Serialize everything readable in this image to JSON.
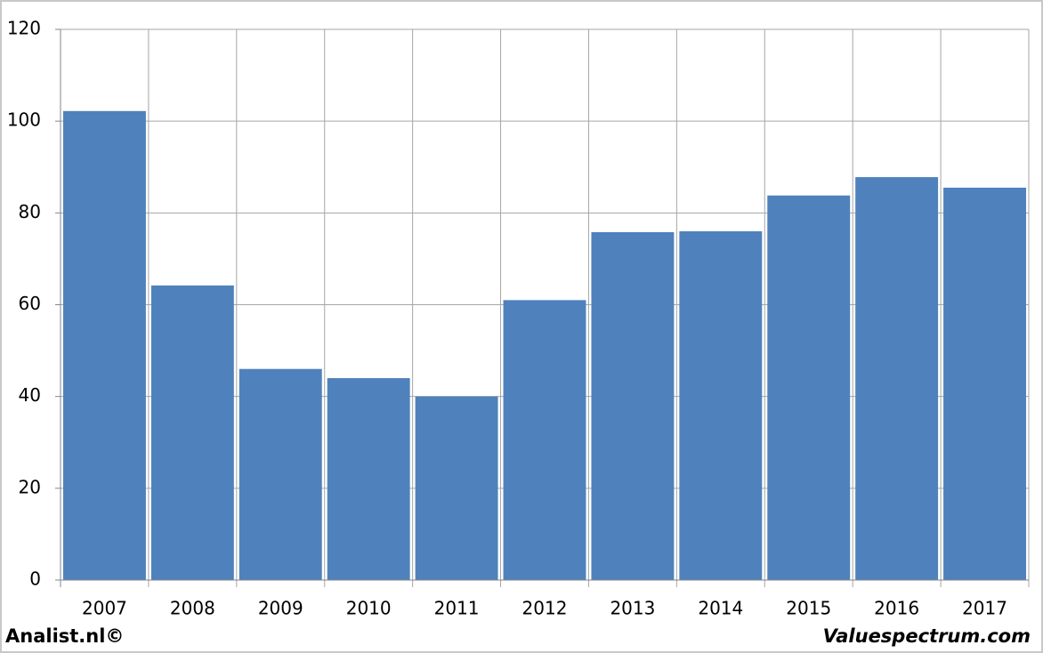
{
  "chart_data": {
    "type": "bar",
    "categories": [
      "2007",
      "2008",
      "2009",
      "2010",
      "2011",
      "2012",
      "2013",
      "2014",
      "2015",
      "2016",
      "2017"
    ],
    "values": [
      102.2,
      64.2,
      46,
      44,
      40,
      61,
      75.8,
      76,
      83.8,
      87.8,
      85.5
    ],
    "color": "#4f81bd",
    "ylim": [
      0,
      120
    ],
    "yticks": [
      0,
      20,
      40,
      60,
      80,
      100,
      120
    ],
    "grid": true,
    "annotations": [
      "Analist.nl©",
      "Valuespectrum.com"
    ]
  }
}
